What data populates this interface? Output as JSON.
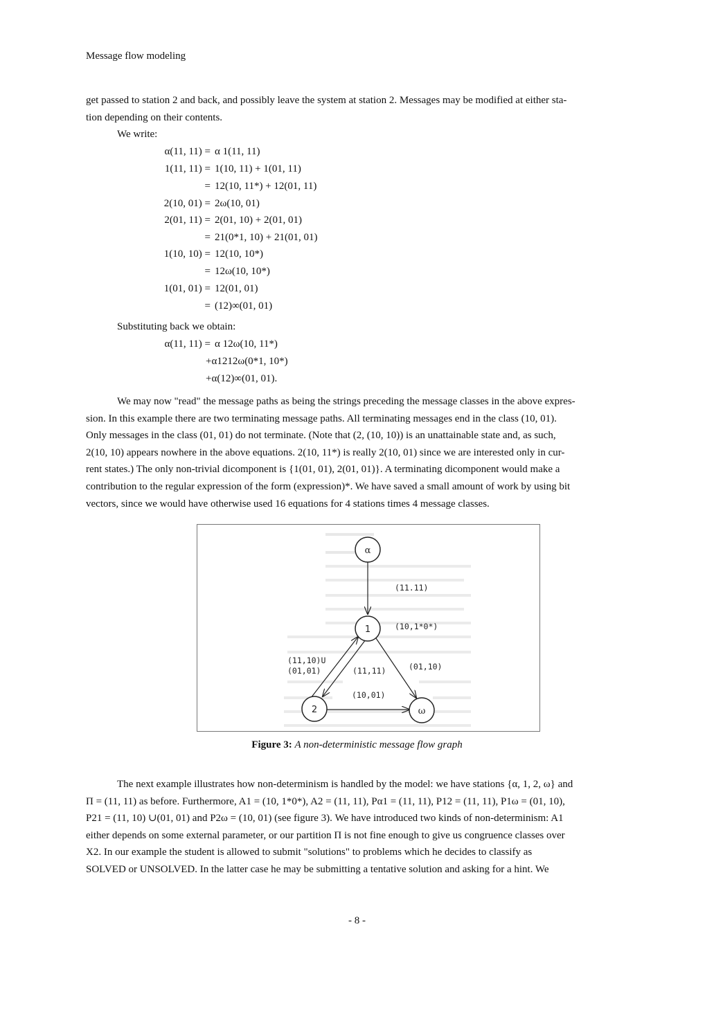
{
  "header": {
    "running_title": "Message flow modeling"
  },
  "intro": {
    "line1": "get passed to station 2 and back, and possibly leave the system at station 2. Messages may be modified at either sta-",
    "line2": "tion depending on their contents.",
    "we_write": "We write:"
  },
  "equations": [
    {
      "lhs": "α(11, 11) =",
      "rhs": "α 1(11, 11)"
    },
    {
      "lhs": "1(11, 11) =",
      "rhs": "1(10, 11) + 1(01, 11)"
    },
    {
      "lhs": "=",
      "rhs": "12(10, 11*) + 12(01, 11)"
    },
    {
      "lhs": "2(10, 01) =",
      "rhs": "2ω(10, 01)"
    },
    {
      "lhs": "2(01, 11) =",
      "rhs": "2(01, 10) + 2(01, 01)"
    },
    {
      "lhs": "=",
      "rhs": "21(0*1, 10) + 21(01, 01)"
    },
    {
      "lhs": "1(10, 10) =",
      "rhs": "12(10, 10*)"
    },
    {
      "lhs": "=",
      "rhs": "12ω(10, 10*)"
    },
    {
      "lhs": "1(01, 01) =",
      "rhs": "12(01, 01)"
    },
    {
      "lhs": "=",
      "rhs": "(12)∞(01, 01)"
    }
  ],
  "substituting": "Substituting back we obtain:",
  "result": [
    {
      "lhs": "α(11, 11) =",
      "rhs": "α 12ω(10, 11*)"
    },
    {
      "lhs": "",
      "rhs": "+α1212ω(0*1, 10*)"
    },
    {
      "lhs": "",
      "rhs": "+α(12)∞(01, 01)."
    }
  ],
  "paragraph2": [
    "We may now \"read\" the message paths as being the strings preceding the message classes in the above expres-",
    "sion. In this example there are two terminating message paths. All terminating messages end in the class (10, 01).",
    "Only messages in the class (01, 01) do not terminate. (Note that (2, (10, 10)) is an unattainable state and, as such,",
    "2(10, 10) appears nowhere in the above equations. 2(10, 11*) is really 2(10, 01) since we are interested only in cur-",
    "rent states.) The only non-trivial dicomponent is {1(01, 01), 2(01, 01)}. A terminating dicomponent would make a",
    "contribution to the regular expression of the form (expression)*. We have saved a small amount of work by using bit",
    "vectors, since we would have otherwise used 16 equations for 4 stations times 4 message classes."
  ],
  "figure": {
    "nodes": {
      "alpha": "α",
      "one": "1",
      "two": "2",
      "omega": "ω"
    },
    "edge_labels": {
      "alpha_one": "(11.11)",
      "self_one": "(10,1*0*)",
      "two_one_a": "(11,10)U",
      "two_one_b": "(01,01)",
      "one_two": "(11,11)",
      "one_omega": "(01,10)",
      "two_omega": "(10,01)"
    },
    "caption_label": "Figure 3:",
    "caption_text": "A non-deterministic message flow graph"
  },
  "paragraph3": [
    "The next example illustrates how non-determinism is handled by the model: we have stations {α, 1, 2, ω} and",
    "Π = (11, 11) as before. Furthermore, A1 = (10, 1*0*), A2 = (11, 11), Pα1 = (11, 11), P12 = (11, 11), P1ω = (01, 10),",
    "P21 = (11, 10) ∪(01, 01) and P2ω = (10, 01) (see figure 3). We have introduced two kinds of non-determinism: A1",
    "either depends on some external parameter, or our partition Π is not fine enough to give us congruence classes over",
    "X2. In our example the student is allowed to submit \"solutions\" to problems which he decides to classify as",
    "SOLVED or UNSOLVED. In the latter case he may be submitting a tentative solution and asking for a hint. We"
  ],
  "page_number": "- 8 -"
}
